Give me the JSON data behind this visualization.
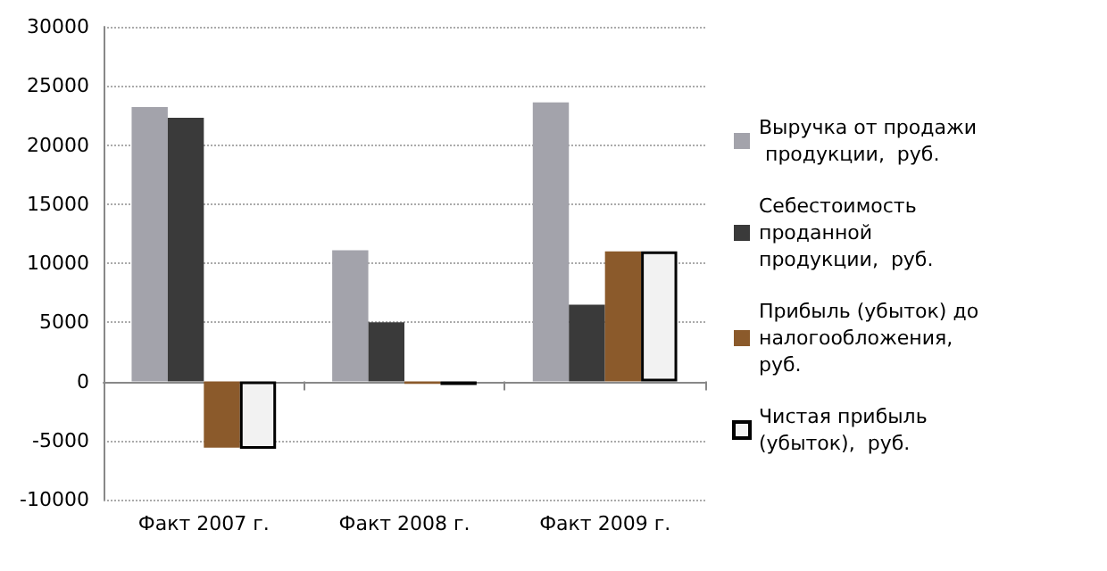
{
  "chart_data": {
    "type": "bar",
    "categories": [
      "Факт 2007 г.",
      "Факт 2008 г.",
      "Факт 2009 г."
    ],
    "series": [
      {
        "name": "Выручка от продажи продукции,  руб.",
        "color": "#a3a3ab",
        "values": [
          23200,
          11100,
          23600
        ]
      },
      {
        "name": "Себестоимость проданной продукции,  руб.",
        "color": "#3a3a3a",
        "values": [
          22300,
          5000,
          6500
        ]
      },
      {
        "name": "Прибыль (убыток) до налогообложения, руб.",
        "color": "#8b5a2b",
        "values": [
          -5600,
          -200,
          11000
        ]
      },
      {
        "name": "Чистая прибыль (убыток),  руб.",
        "color": "#f2f2f2",
        "values": [
          -5700,
          -300,
          11000
        ]
      }
    ],
    "ylim": [
      -10000,
      30000
    ],
    "yticks": [
      -10000,
      -5000,
      0,
      5000,
      10000,
      15000,
      20000,
      25000,
      30000
    ],
    "grid": "y",
    "legend": "right"
  }
}
